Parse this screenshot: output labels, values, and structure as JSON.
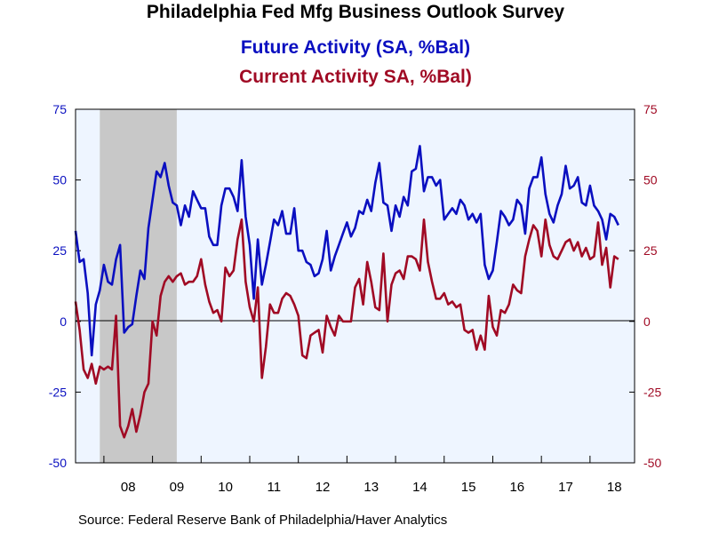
{
  "title": "Philadelphia Fed Mfg Business Outlook Survey",
  "subtitle_future": "Future Activity (SA, %Bal)",
  "subtitle_current": "Current Activity SA, %Bal)",
  "source": "Source:  Federal Reserve Bank of Philadelphia/Haver Analytics",
  "colors": {
    "future": "#0a0fc0",
    "current": "#a00a24",
    "plot_background": "#eef5ff",
    "recession_shading": "#c8c8c8",
    "axis_text": "#0a0fc0"
  },
  "chart_data": {
    "type": "line",
    "title": "Philadelphia Fed Mfg Business Outlook Survey",
    "left_axis": {
      "ylim": [
        -50,
        75
      ],
      "ticks": [
        75,
        50,
        25,
        0,
        -25,
        -50
      ],
      "tick_labels": [
        "75",
        "50",
        "25",
        "0",
        "-25",
        "-50"
      ]
    },
    "right_axis": {
      "ylim": [
        -50,
        75
      ],
      "ticks": [
        75,
        50,
        25,
        0,
        -25,
        -50
      ],
      "tick_labels": [
        "75",
        "50",
        "25",
        "0",
        "-25",
        "-50"
      ]
    },
    "x_axis": {
      "range": [
        "2007-06",
        "2018-12"
      ],
      "year_labels": [
        {
          "label": "08",
          "year": 2008
        },
        {
          "label": "09",
          "year": 2009
        },
        {
          "label": "10",
          "year": 2010
        },
        {
          "label": "11",
          "year": 2011
        },
        {
          "label": "12",
          "year": 2012
        },
        {
          "label": "13",
          "year": 2013
        },
        {
          "label": "14",
          "year": 2014
        },
        {
          "label": "15",
          "year": 2015
        },
        {
          "label": "16",
          "year": 2016
        },
        {
          "label": "17",
          "year": 2017
        },
        {
          "label": "18",
          "year": 2018
        }
      ]
    },
    "recession": {
      "start": "2007-12",
      "end": "2009-06"
    },
    "zero_line": true,
    "legend": "none",
    "grid": false,
    "series": [
      {
        "name": "Future Activity (SA, %Bal)",
        "color": "#0a0fc0",
        "start": "2007-06",
        "values": [
          32,
          21,
          22,
          10,
          -12,
          6,
          11,
          20,
          14,
          13,
          22,
          27,
          -4,
          -2,
          -1,
          9,
          18,
          15,
          33,
          43,
          53,
          51,
          56,
          48,
          42,
          41,
          34,
          41,
          37,
          46,
          43,
          40,
          40,
          30,
          27,
          27,
          41,
          47,
          47,
          44,
          39,
          57,
          37,
          27,
          8,
          29,
          13,
          20,
          28,
          36,
          34,
          39,
          31,
          31,
          40,
          25,
          25,
          21,
          20,
          16,
          17,
          22,
          32,
          18,
          23,
          27,
          31,
          35,
          30,
          33,
          39,
          38,
          43,
          39,
          49,
          56,
          42,
          41,
          32,
          41,
          37,
          44,
          41,
          53,
          54,
          62,
          46,
          51,
          51,
          48,
          50,
          36,
          38,
          40,
          38,
          43,
          41,
          36,
          38,
          35,
          38,
          20,
          15,
          18,
          28,
          39,
          37,
          34,
          36,
          43,
          41,
          31,
          47,
          51,
          51,
          58,
          45,
          38,
          35,
          41,
          45,
          55,
          47,
          48,
          51,
          42,
          41,
          48,
          41,
          39,
          36,
          29,
          38,
          37,
          34
        ]
      },
      {
        "name": "Current Activity SA, %Bal)",
        "color": "#a00a24",
        "start": "2007-06",
        "values": [
          7,
          -3,
          -17,
          -20,
          -15,
          -22,
          -16,
          -17,
          -16,
          -17,
          2,
          -37,
          -41,
          -37,
          -31,
          -39,
          -33,
          -25,
          -22,
          0,
          -5,
          9,
          14,
          16,
          14,
          16,
          17,
          13,
          14,
          14,
          16,
          22,
          13,
          7,
          3,
          4,
          0,
          19,
          16,
          18,
          29,
          36,
          14,
          5,
          0,
          12,
          -20,
          -9,
          6,
          3,
          3,
          8,
          10,
          9,
          6,
          2,
          -12,
          -13,
          -5,
          -4,
          -3,
          -11,
          2,
          -2,
          -5,
          2,
          0,
          0,
          0,
          12,
          15,
          6,
          21,
          14,
          5,
          4,
          24,
          0,
          13,
          17,
          18,
          15,
          23,
          23,
          22,
          18,
          36,
          21,
          14,
          8,
          8,
          10,
          6,
          7,
          5,
          6,
          -3,
          -4,
          -3,
          -10,
          -5,
          -10,
          9,
          -2,
          -5,
          4,
          3,
          6,
          13,
          11,
          10,
          23,
          29,
          34,
          32,
          23,
          36,
          27,
          23,
          22,
          25,
          28,
          29,
          25,
          28,
          23,
          26,
          22,
          23,
          35,
          20,
          26,
          12,
          23,
          22
        ]
      }
    ]
  }
}
